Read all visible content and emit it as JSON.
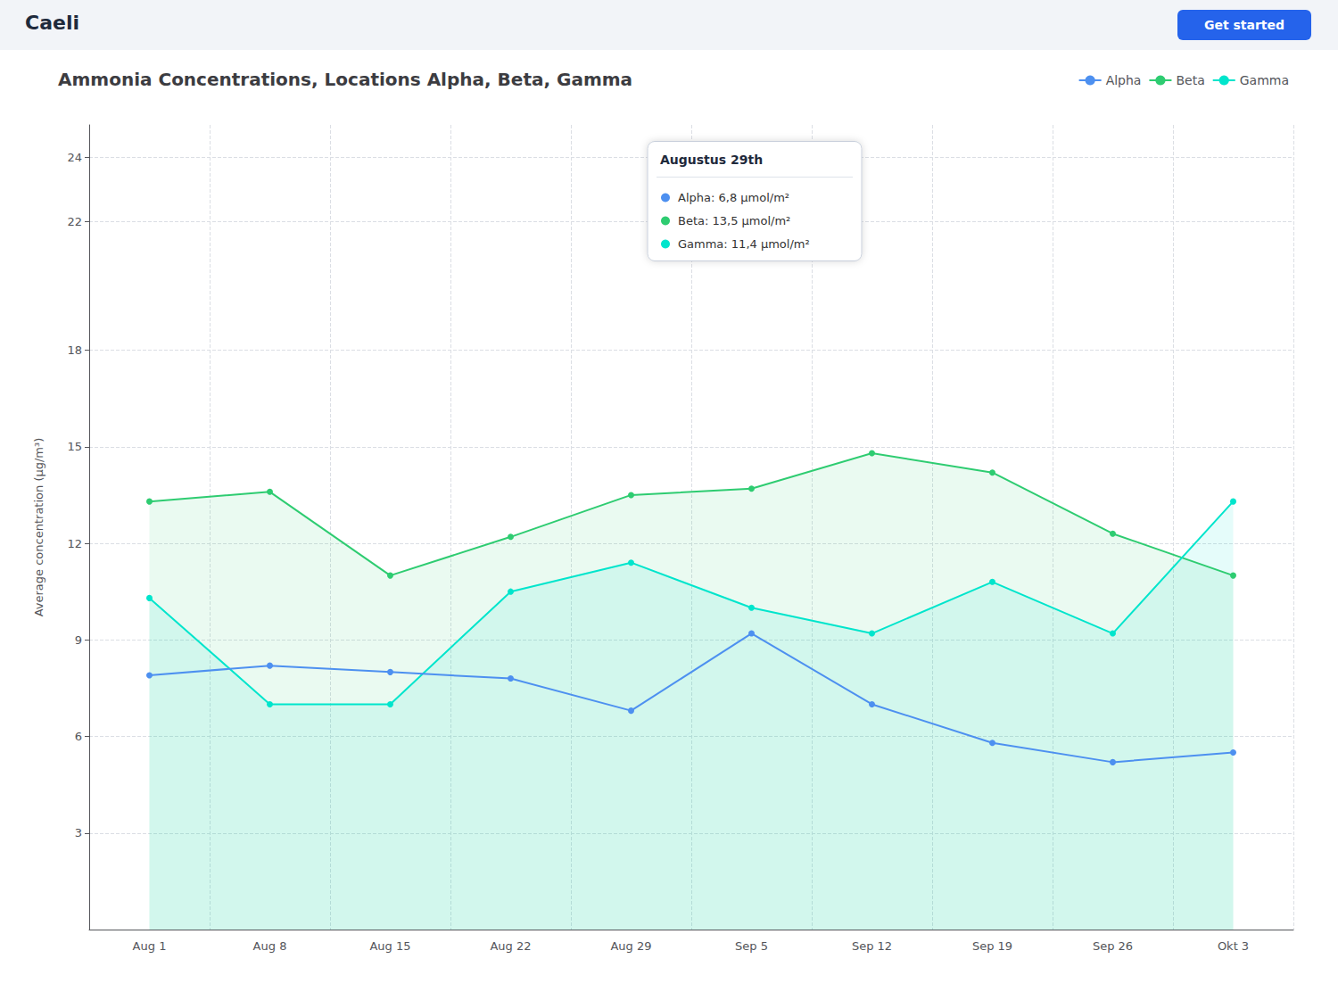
{
  "chart_data": {
    "type": "line",
    "title": "Ammonia Concentrations, Locations Alpha, Beta, Gamma",
    "y_label": "Average concentration (μg/m³)",
    "categories": [
      "Aug 1",
      "Aug 8",
      "Aug 15",
      "Aug 22",
      "Aug 29",
      "Sep 5",
      "Sep 12",
      "Sep 19",
      "Sep 26",
      "Okt 3"
    ],
    "series": [
      {
        "name": "Alpha",
        "type": "line",
        "color": "#4d90f0",
        "values": [
          7.9,
          8.2,
          8.0,
          7.8,
          6.8,
          9.2,
          7.0,
          5.8,
          5.2,
          5.5
        ]
      },
      {
        "name": "Beta",
        "type": "area",
        "color": "#2ecc71",
        "values": [
          13.3,
          13.6,
          11.0,
          12.2,
          13.5,
          13.7,
          14.8,
          14.2,
          12.3,
          11.0
        ]
      },
      {
        "name": "Gamma",
        "type": "area",
        "color": "#00e5cc",
        "values": [
          10.3,
          7.0,
          7.0,
          10.5,
          11.4,
          10.0,
          9.2,
          10.8,
          9.2,
          13.3
        ]
      }
    ],
    "ylim": [
      0,
      25
    ],
    "yticks": [
      3,
      6,
      9,
      12,
      15,
      18,
      22,
      24
    ],
    "grid": true,
    "legend": "upper right",
    "marker": "circle",
    "annotations": [
      {
        "text": "Caeli"
      },
      {
        "text": "Get started"
      },
      {
        "x": "Aug 29",
        "texts": [
          "Augustus 29th",
          "Alpha: 6,8 μmol/m²",
          "Beta: 13,5 μmol/m²",
          "Gamma: 11,4 μmol/m²"
        ]
      }
    ]
  }
}
